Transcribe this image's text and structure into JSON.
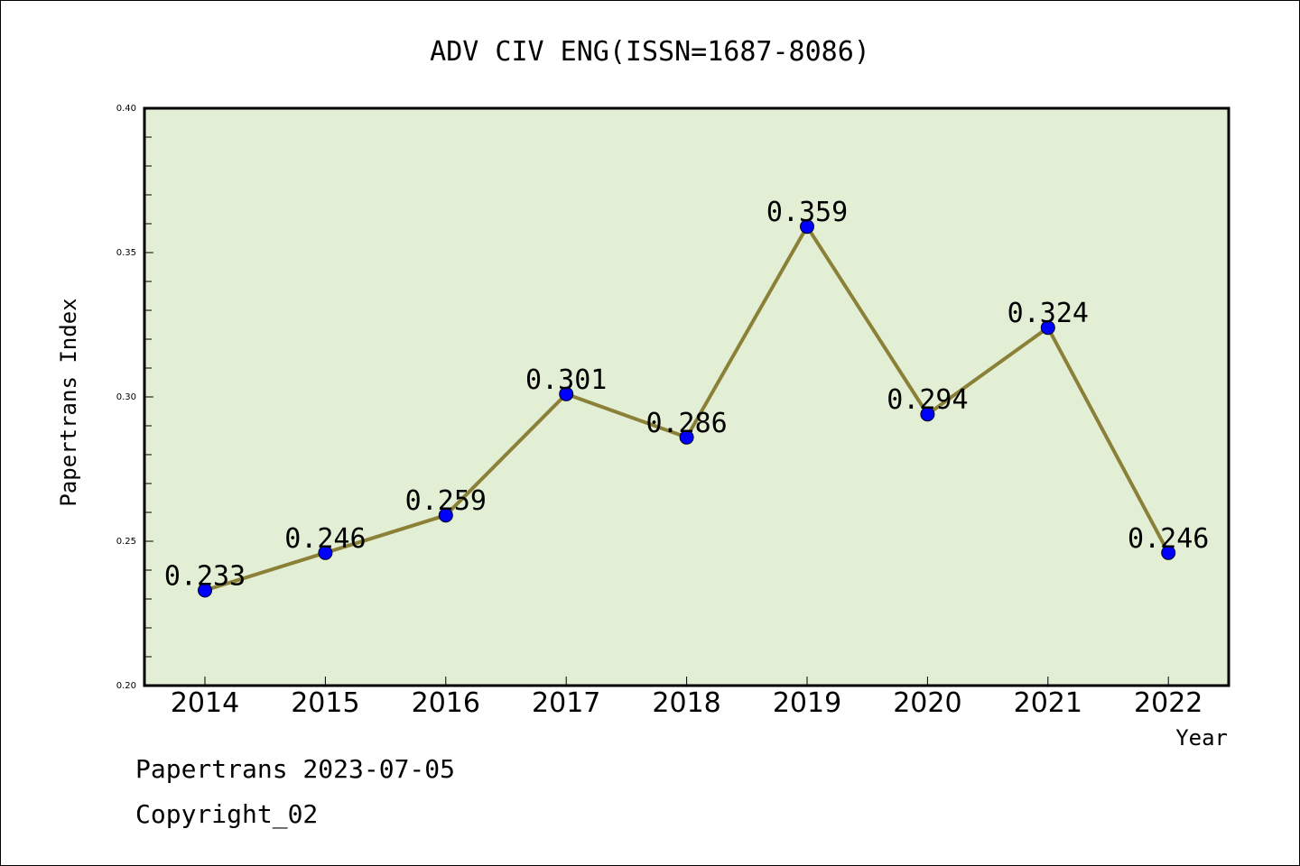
{
  "chart_data": {
    "type": "line",
    "title": "ADV CIV ENG(ISSN=1687-8086)",
    "xlabel": "Year",
    "ylabel": "Papertrans Index",
    "categories": [
      "2014",
      "2015",
      "2016",
      "2017",
      "2018",
      "2019",
      "2020",
      "2021",
      "2022"
    ],
    "values": [
      0.233,
      0.246,
      0.259,
      0.301,
      0.286,
      0.359,
      0.294,
      0.324,
      0.246
    ],
    "data_labels": [
      "0.233",
      "0.246",
      "0.259",
      "0.301",
      "0.286",
      "0.359",
      "0.294",
      "0.324",
      "0.246"
    ],
    "ylim": [
      0.2,
      0.4
    ],
    "yticks": [
      "0.20",
      "0.25",
      "0.30",
      "0.35",
      "0.40"
    ],
    "grid": false,
    "colors": {
      "plot_background": "#e2efd4",
      "line": "#8b8038",
      "marker": "#0000ff"
    }
  },
  "footer": {
    "line1": "Papertrans 2023-07-05",
    "line2": "Copyright_02"
  }
}
